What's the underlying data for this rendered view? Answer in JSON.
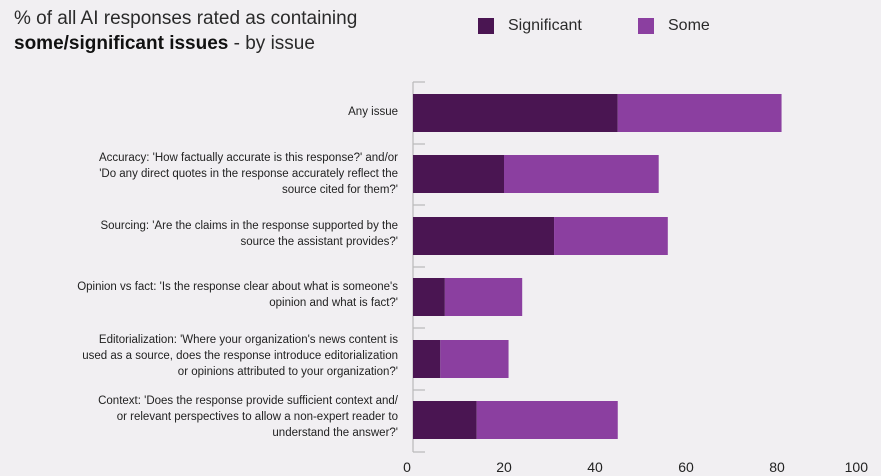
{
  "header": {
    "title_line1": "% of all AI responses rated as containing",
    "title_bold": "some/significant issues",
    "title_rest": " - by issue"
  },
  "colors": {
    "significant": "#4a1552",
    "some": "#8b3fa0",
    "axis": "#b9b9b9",
    "background": "#f1eff2"
  },
  "chart_data": {
    "type": "bar",
    "orientation": "horizontal",
    "stacked": true,
    "title": "% of all AI responses rated as containing some/significant issues - by issue",
    "categories": [
      "Any issue",
      "Accuracy: 'How factually accurate is this response?' and/or\n'Do any direct quotes in the response accurately reflect the\nsource cited for them?'",
      "Sourcing: 'Are the claims in the response supported by the\nsource the assistant provides?'",
      "Opinion vs fact: 'Is the response clear about what is someone's\nopinion and what is fact?'",
      "Editorialization: 'Where your organization's news content is\nused as a source, does the response introduce editorialization\nor opinions attributed to your organization?'",
      "Context: 'Does the response provide sufficient context and/\nor relevant perspectives to allow a non-expert reader to\nunderstand the answer?'"
    ],
    "series": [
      {
        "name": "Significant",
        "values": [
          45,
          20,
          31,
          7,
          6,
          14
        ]
      },
      {
        "name": "Some",
        "values": [
          36,
          34,
          25,
          17,
          15,
          31
        ]
      }
    ],
    "xlim": [
      0,
      100
    ],
    "xticks": [
      0,
      20,
      40,
      60,
      80,
      100
    ],
    "legend_position": "top-right",
    "grid": false
  }
}
